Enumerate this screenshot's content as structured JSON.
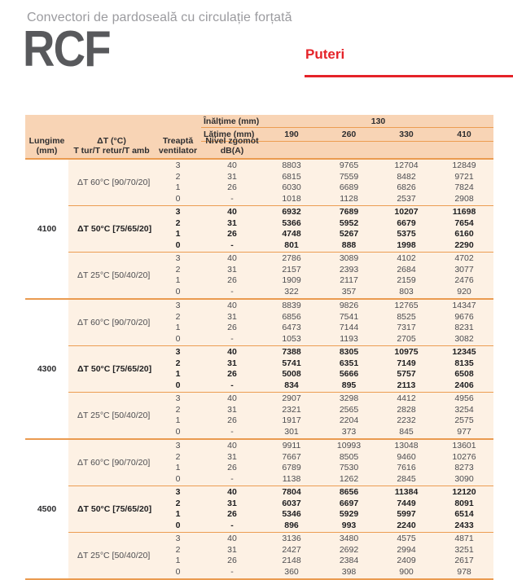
{
  "header": {
    "title": "Convectori de pardoseală cu circulație forțată",
    "product_code": "RCF",
    "section_title": "Puteri"
  },
  "colors": {
    "accent_red": "#e52329",
    "header_bg": "#f8d4b5",
    "row_bg": "#fdf1e4",
    "rule_orange": "#ea9b50"
  },
  "table": {
    "head": {
      "inaltime_label": "Înălțime (mm)",
      "inaltime_value": "130",
      "latime_label": "Lățime (mm)",
      "widths": [
        "190",
        "260",
        "330",
        "410"
      ],
      "lungime": {
        "l1": "Lungime",
        "l2": "(mm)"
      },
      "dt": {
        "l1": "ΔT (°C)",
        "l2": "T tur/T retur/T amb"
      },
      "treapta": {
        "l1": "Treaptă",
        "l2": "ventilator"
      },
      "zgomot": {
        "l1": "Nivel zgomot",
        "l2": "dB(A)"
      }
    },
    "blocks": [
      {
        "length": "4100",
        "groups": [
          {
            "label": "ΔT 60°C [90/70/20]",
            "bold": false,
            "rows": [
              {
                "step": "3",
                "noise": "40",
                "values": [
                  "8803",
                  "9765",
                  "12704",
                  "12849"
                ]
              },
              {
                "step": "2",
                "noise": "31",
                "values": [
                  "6815",
                  "7559",
                  "8482",
                  "9721"
                ]
              },
              {
                "step": "1",
                "noise": "26",
                "values": [
                  "6030",
                  "6689",
                  "6826",
                  "7824"
                ]
              },
              {
                "step": "0",
                "noise": "-",
                "values": [
                  "1018",
                  "1128",
                  "2537",
                  "2908"
                ]
              }
            ]
          },
          {
            "label": "ΔT 50°C [75/65/20]",
            "bold": true,
            "rows": [
              {
                "step": "3",
                "noise": "40",
                "values": [
                  "6932",
                  "7689",
                  "10207",
                  "11698"
                ]
              },
              {
                "step": "2",
                "noise": "31",
                "values": [
                  "5366",
                  "5952",
                  "6679",
                  "7654"
                ]
              },
              {
                "step": "1",
                "noise": "26",
                "values": [
                  "4748",
                  "5267",
                  "5375",
                  "6160"
                ]
              },
              {
                "step": "0",
                "noise": "-",
                "values": [
                  "801",
                  "888",
                  "1998",
                  "2290"
                ]
              }
            ]
          },
          {
            "label": "ΔT 25°C [50/40/20]",
            "bold": false,
            "rows": [
              {
                "step": "3",
                "noise": "40",
                "values": [
                  "2786",
                  "3089",
                  "4102",
                  "4702"
                ]
              },
              {
                "step": "2",
                "noise": "31",
                "values": [
                  "2157",
                  "2393",
                  "2684",
                  "3077"
                ]
              },
              {
                "step": "1",
                "noise": "26",
                "values": [
                  "1909",
                  "2117",
                  "2159",
                  "2476"
                ]
              },
              {
                "step": "0",
                "noise": "-",
                "values": [
                  "322",
                  "357",
                  "803",
                  "920"
                ]
              }
            ]
          }
        ]
      },
      {
        "length": "4300",
        "groups": [
          {
            "label": "ΔT 60°C [90/70/20]",
            "bold": false,
            "rows": [
              {
                "step": "3",
                "noise": "40",
                "values": [
                  "8839",
                  "9826",
                  "12765",
                  "14347"
                ]
              },
              {
                "step": "2",
                "noise": "31",
                "values": [
                  "6856",
                  "7541",
                  "8525",
                  "9676"
                ]
              },
              {
                "step": "1",
                "noise": "26",
                "values": [
                  "6473",
                  "7144",
                  "7317",
                  "8231"
                ]
              },
              {
                "step": "0",
                "noise": "-",
                "values": [
                  "1053",
                  "1193",
                  "2705",
                  "3082"
                ]
              }
            ]
          },
          {
            "label": "ΔT 50°C [75/65/20]",
            "bold": true,
            "rows": [
              {
                "step": "3",
                "noise": "40",
                "values": [
                  "7388",
                  "8305",
                  "10975",
                  "12345"
                ]
              },
              {
                "step": "2",
                "noise": "31",
                "values": [
                  "5741",
                  "6351",
                  "7149",
                  "8135"
                ]
              },
              {
                "step": "1",
                "noise": "26",
                "values": [
                  "5008",
                  "5666",
                  "5757",
                  "6508"
                ]
              },
              {
                "step": "0",
                "noise": "-",
                "values": [
                  "834",
                  "895",
                  "2113",
                  "2406"
                ]
              }
            ]
          },
          {
            "label": "ΔT 25°C [50/40/20]",
            "bold": false,
            "rows": [
              {
                "step": "3",
                "noise": "40",
                "values": [
                  "2907",
                  "3298",
                  "4412",
                  "4956"
                ]
              },
              {
                "step": "2",
                "noise": "31",
                "values": [
                  "2321",
                  "2565",
                  "2828",
                  "3254"
                ]
              },
              {
                "step": "1",
                "noise": "26",
                "values": [
                  "1917",
                  "2204",
                  "2232",
                  "2575"
                ]
              },
              {
                "step": "0",
                "noise": "-",
                "values": [
                  "301",
                  "373",
                  "845",
                  "977"
                ]
              }
            ]
          }
        ]
      },
      {
        "length": "4500",
        "groups": [
          {
            "label": "ΔT 60°C [90/70/20]",
            "bold": false,
            "rows": [
              {
                "step": "3",
                "noise": "40",
                "values": [
                  "9911",
                  "10993",
                  "13048",
                  "13601"
                ]
              },
              {
                "step": "2",
                "noise": "31",
                "values": [
                  "7667",
                  "8505",
                  "9460",
                  "10276"
                ]
              },
              {
                "step": "1",
                "noise": "26",
                "values": [
                  "6789",
                  "7530",
                  "7616",
                  "8273"
                ]
              },
              {
                "step": "0",
                "noise": "-",
                "values": [
                  "1138",
                  "1262",
                  "2845",
                  "3090"
                ]
              }
            ]
          },
          {
            "label": "ΔT 50°C [75/65/20]",
            "bold": true,
            "rows": [
              {
                "step": "3",
                "noise": "40",
                "values": [
                  "7804",
                  "8656",
                  "11384",
                  "12120"
                ]
              },
              {
                "step": "2",
                "noise": "31",
                "values": [
                  "6037",
                  "6697",
                  "7449",
                  "8091"
                ]
              },
              {
                "step": "1",
                "noise": "26",
                "values": [
                  "5346",
                  "5929",
                  "5997",
                  "6514"
                ]
              },
              {
                "step": "0",
                "noise": "-",
                "values": [
                  "896",
                  "993",
                  "2240",
                  "2433"
                ]
              }
            ]
          },
          {
            "label": "ΔT 25°C [50/40/20]",
            "bold": false,
            "rows": [
              {
                "step": "3",
                "noise": "40",
                "values": [
                  "3136",
                  "3480",
                  "4575",
                  "4871"
                ]
              },
              {
                "step": "2",
                "noise": "31",
                "values": [
                  "2427",
                  "2692",
                  "2994",
                  "3251"
                ]
              },
              {
                "step": "1",
                "noise": "26",
                "values": [
                  "2148",
                  "2384",
                  "2409",
                  "2617"
                ]
              },
              {
                "step": "0",
                "noise": "-",
                "values": [
                  "360",
                  "398",
                  "900",
                  "978"
                ]
              }
            ]
          }
        ]
      }
    ]
  }
}
